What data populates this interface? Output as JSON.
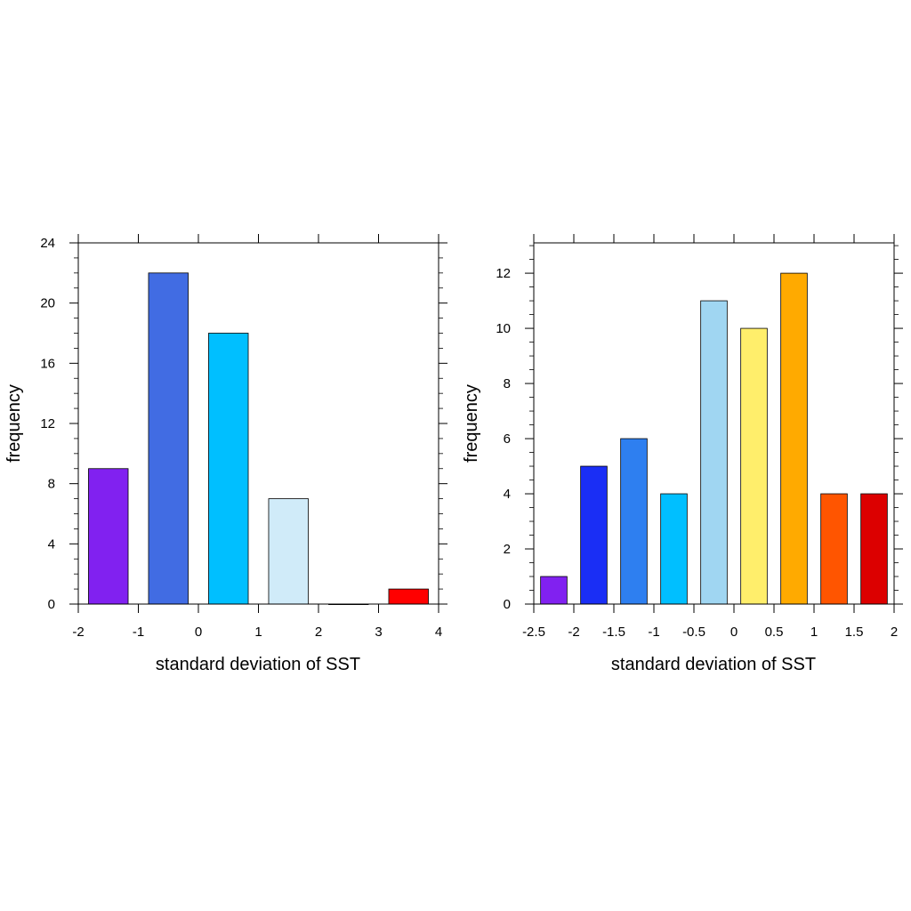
{
  "chart_data": [
    {
      "type": "bar",
      "title": "",
      "xlabel": "standard deviation of SST",
      "ylabel": "frequency",
      "xlim": [
        -2,
        4
      ],
      "ylim": [
        0,
        24
      ],
      "x_ticks": [
        -2,
        -1,
        0,
        1,
        2,
        3,
        4
      ],
      "x_tick_labels": [
        "-2",
        "-1",
        "0",
        "1",
        "2",
        "3",
        "4"
      ],
      "y_ticks": [
        0,
        4,
        8,
        12,
        16,
        20,
        24
      ],
      "y_tick_labels": [
        "0",
        "4",
        "8",
        "12",
        "16",
        "20",
        "24"
      ],
      "y_minor_step": 1,
      "x_minor_step": null,
      "grid": false,
      "bin_centers": [
        -1.5,
        -0.5,
        0.5,
        1.5,
        2.5,
        3.5
      ],
      "bar_width": 0.66,
      "values": [
        9,
        22,
        18,
        7,
        0,
        1
      ],
      "colors": [
        "#8121F0",
        "#416CE3",
        "#00BFFF",
        "#D0EBF9",
        "#ffffff",
        "#FF0000"
      ]
    },
    {
      "type": "bar",
      "title": "",
      "xlabel": "standard deviation of SST",
      "ylabel": "frequency",
      "xlim": [
        -2.5,
        2
      ],
      "ylim": [
        0,
        13.1
      ],
      "x_ticks": [
        -2.5,
        -2,
        -1.5,
        -1,
        -0.5,
        0,
        0.5,
        1,
        1.5,
        2
      ],
      "x_tick_labels": [
        "-2.5",
        "-2",
        "-1.5",
        "-1",
        "-0.5",
        "0",
        "0.5",
        "1",
        "1.5",
        "2"
      ],
      "y_ticks": [
        0,
        2,
        4,
        6,
        8,
        10,
        12
      ],
      "y_tick_labels": [
        "0",
        "2",
        "4",
        "6",
        "8",
        "10",
        "12"
      ],
      "y_minor_step": 0.5,
      "grid": false,
      "bin_centers": [
        -2.25,
        -1.75,
        -1.25,
        -0.75,
        -0.25,
        0.25,
        0.75,
        1.25,
        1.75
      ],
      "bar_width": 0.33,
      "values": [
        1,
        5,
        6,
        4,
        11,
        10,
        12,
        4,
        4
      ],
      "colors": [
        "#8121F0",
        "#1A2EF5",
        "#2E7FF0",
        "#00BFFF",
        "#A0D6F2",
        "#FFEE6B",
        "#FFAA00",
        "#FF5500",
        "#DC0000"
      ]
    }
  ]
}
